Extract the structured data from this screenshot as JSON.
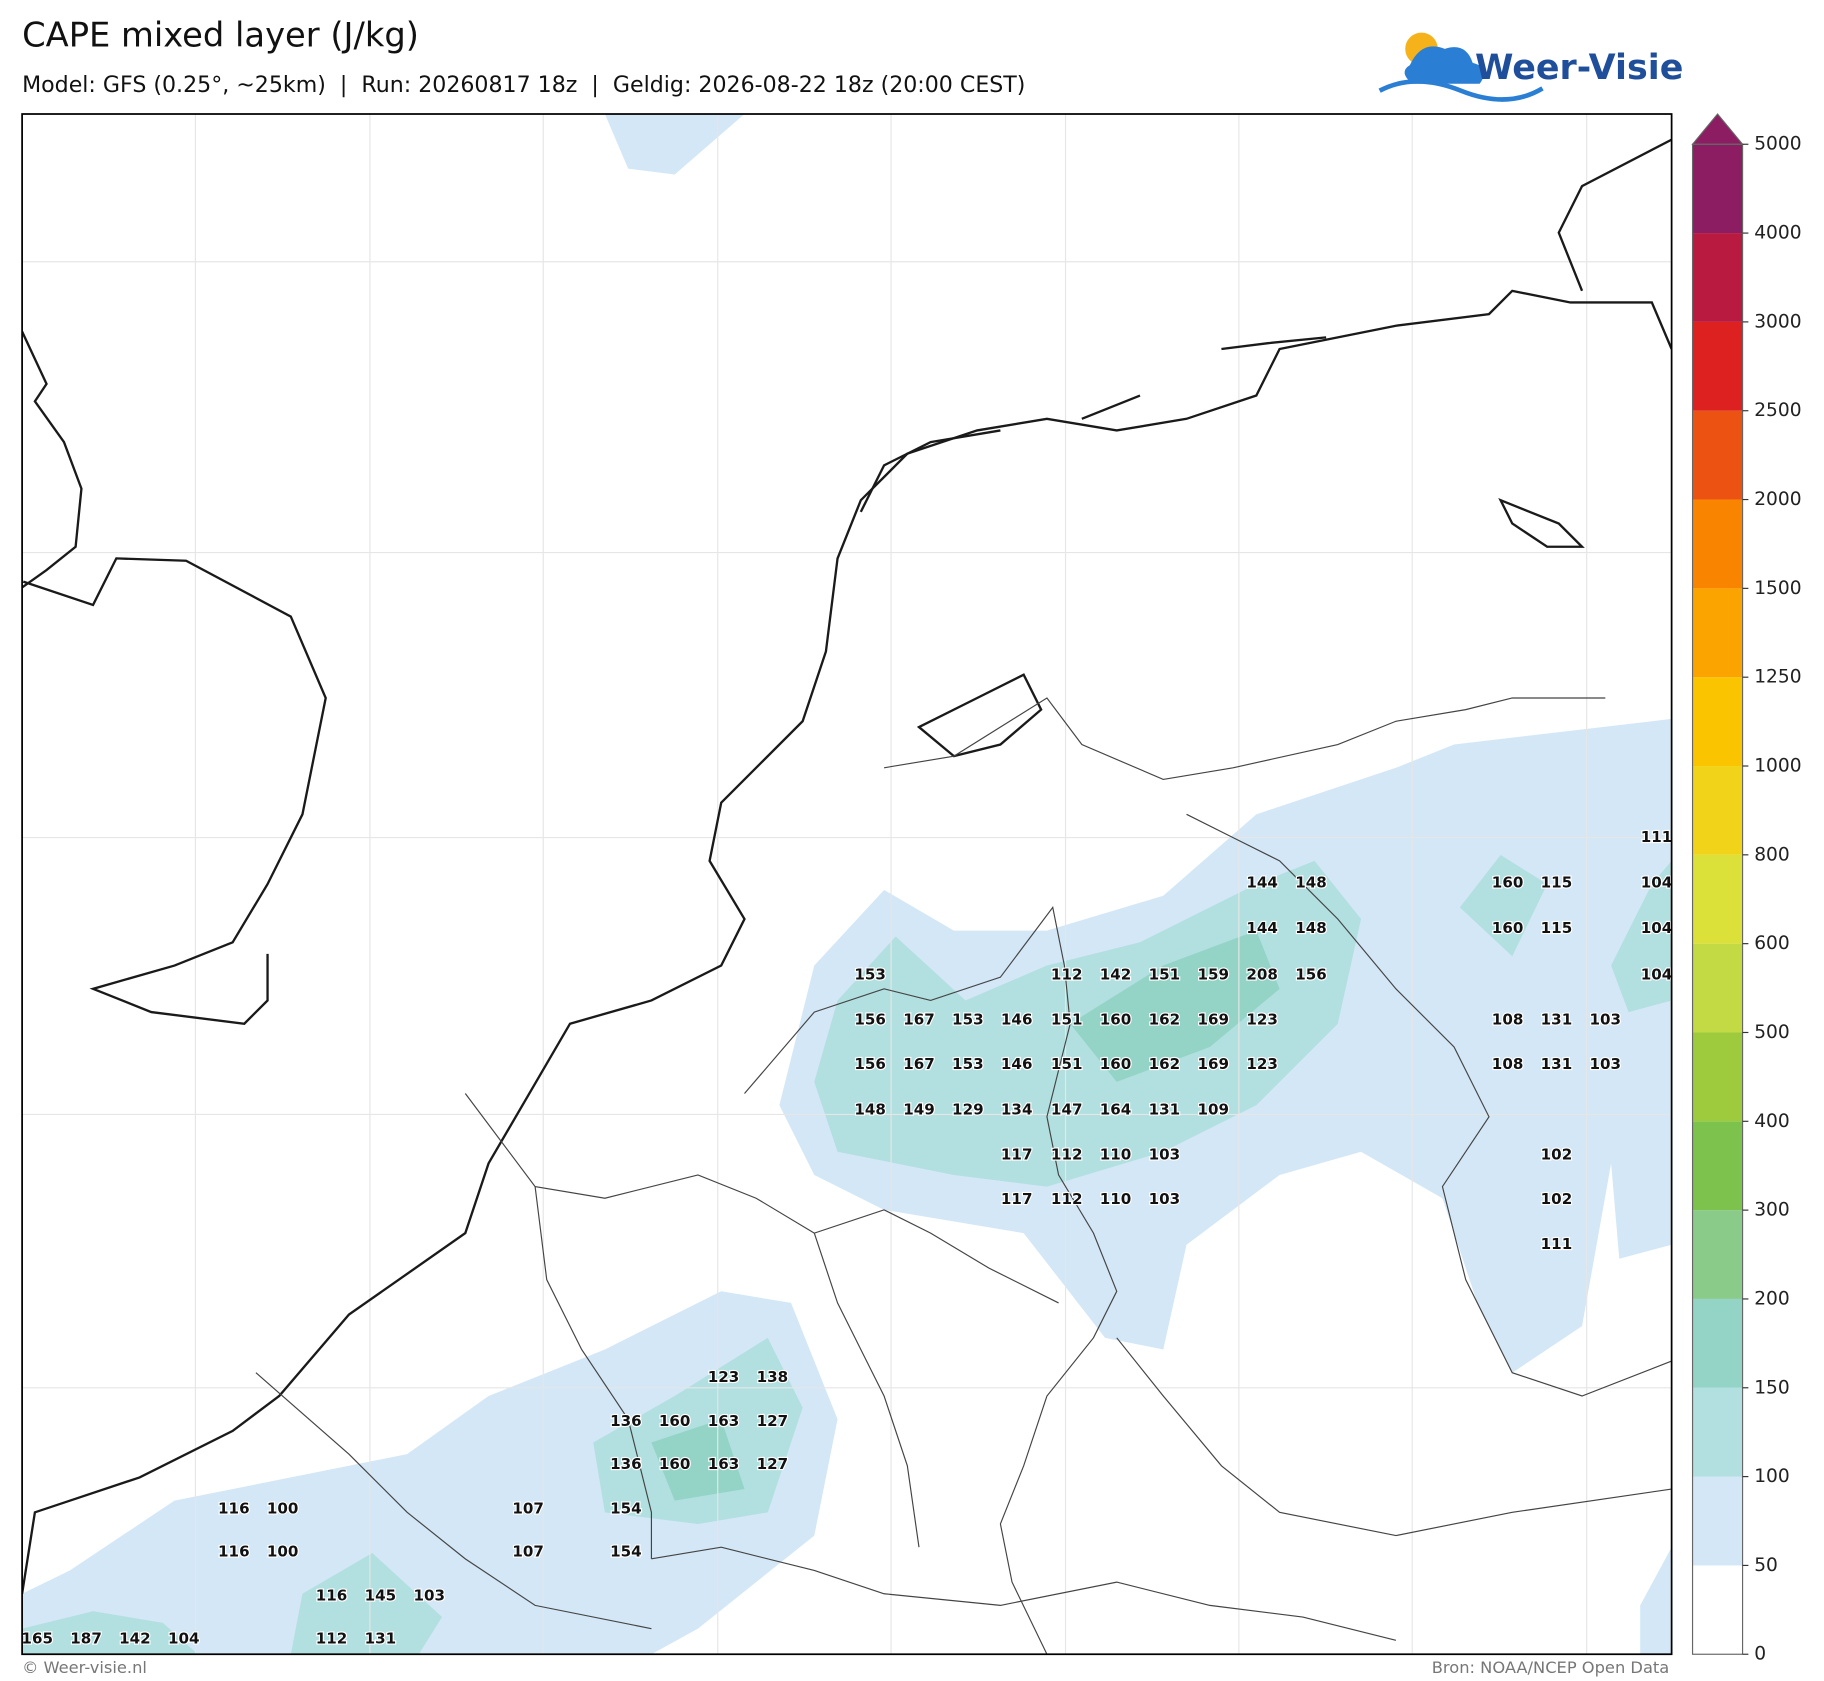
{
  "header": {
    "title": "CAPE mixed layer (J/kg)",
    "subtitle": "Model: GFS (0.25°, ~25km)  |  Run: 20260817 18z  |  Geldig: 2026-08-22 18z (20:00 CEST)",
    "logo": "Weer-Visie"
  },
  "colorbar": {
    "levels": [
      0,
      50,
      100,
      150,
      200,
      300,
      400,
      500,
      600,
      800,
      1000,
      1250,
      1500,
      2000,
      2500,
      3000,
      4000,
      5000
    ],
    "colors": [
      "#ffffff",
      "#d3e7f6",
      "#b2dfdf",
      "#93d4c6",
      "#8bcb8a",
      "#7cc24c",
      "#9dcb3d",
      "#c3da45",
      "#dce13a",
      "#f1d419",
      "#fbc400",
      "#fba400",
      "#f98400",
      "#ec5212",
      "#dc2120",
      "#b91a3f",
      "#8d1d63"
    ],
    "over_color": "#8d1d63"
  },
  "point_values": [
    111,
    144,
    148,
    160,
    115,
    104,
    144,
    148,
    160,
    115,
    104,
    153,
    112,
    142,
    151,
    159,
    208,
    156,
    104,
    156,
    167,
    153,
    146,
    151,
    160,
    162,
    169,
    123,
    108,
    131,
    103,
    156,
    167,
    153,
    146,
    151,
    160,
    162,
    169,
    123,
    108,
    131,
    103,
    148,
    149,
    129,
    134,
    147,
    164,
    131,
    109,
    117,
    112,
    110,
    103,
    102,
    117,
    112,
    110,
    103,
    102,
    111,
    123,
    138,
    136,
    160,
    163,
    127,
    136,
    160,
    163,
    127,
    116,
    100,
    107,
    154,
    116,
    100,
    107,
    154,
    116,
    145,
    103,
    165,
    187,
    142,
    104,
    112,
    131
  ],
  "footer": {
    "left": "© Weer-visie.nl",
    "right": "Bron: NOAA/NCEP Open Data"
  }
}
